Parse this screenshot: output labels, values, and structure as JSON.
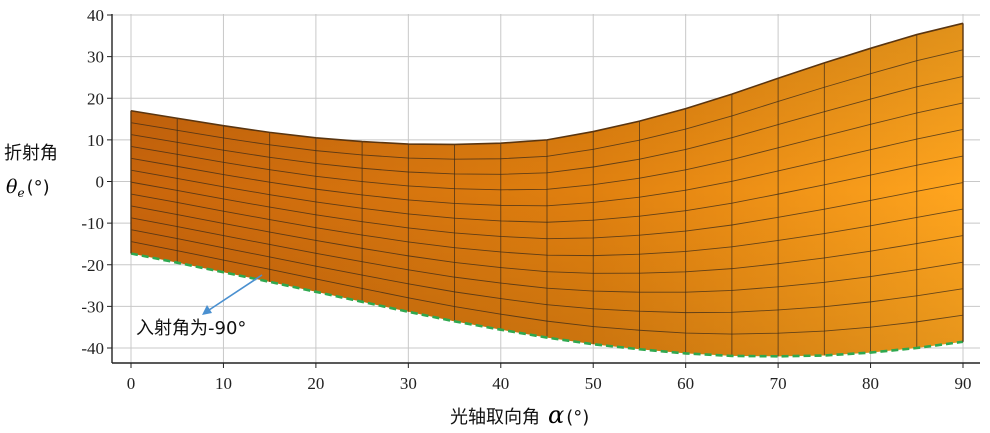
{
  "chart_data": {
    "type": "area",
    "x_ticks": [
      0,
      10,
      20,
      30,
      40,
      50,
      60,
      70,
      80,
      90
    ],
    "y_ticks": [
      40,
      30,
      20,
      10,
      0,
      -10,
      -20,
      -30,
      -40
    ],
    "xlim": [
      0,
      90
    ],
    "ylim": [
      -43,
      40
    ],
    "grid": true,
    "xlabel": "光轴取向角",
    "xlabel_symbol": "α",
    "xlabel_unit": "(°)",
    "ylabel": "折射角",
    "ylabel_symbol": "θ",
    "ylabel_subscript": "e",
    "ylabel_unit": "(°)",
    "annotation": "入射角为-90°",
    "series": [
      {
        "role": "upper",
        "x": [
          0,
          5,
          10,
          15,
          20,
          25,
          30,
          35,
          40,
          45,
          50,
          55,
          60,
          65,
          70,
          75,
          80,
          85,
          90
        ],
        "values": [
          17,
          15.2,
          13.4,
          11.8,
          10.5,
          9.6,
          9,
          8.9,
          9.2,
          10,
          12,
          14.5,
          17.5,
          21,
          24.8,
          28.5,
          32,
          35.3,
          38
        ]
      },
      {
        "role": "lower",
        "x": [
          0,
          5,
          10,
          15,
          20,
          25,
          30,
          35,
          40,
          45,
          50,
          55,
          60,
          65,
          70,
          75,
          80,
          85,
          90
        ],
        "values": [
          -17.3,
          -19.5,
          -21.8,
          -24.1,
          -26.5,
          -28.9,
          -31.3,
          -33.6,
          -35.6,
          -37.5,
          -39.1,
          -40.3,
          -41.3,
          -41.9,
          -42,
          -41.8,
          -41.1,
          -40,
          -38.5
        ]
      }
    ],
    "colors": {
      "surface_light": "#ffa51e",
      "surface_dark": "#c9650c",
      "mesh": "#3a2a18",
      "edge_dashed": "#2fa84f",
      "grid": "#c8c8c8",
      "arrow": "#4a90d0"
    }
  }
}
